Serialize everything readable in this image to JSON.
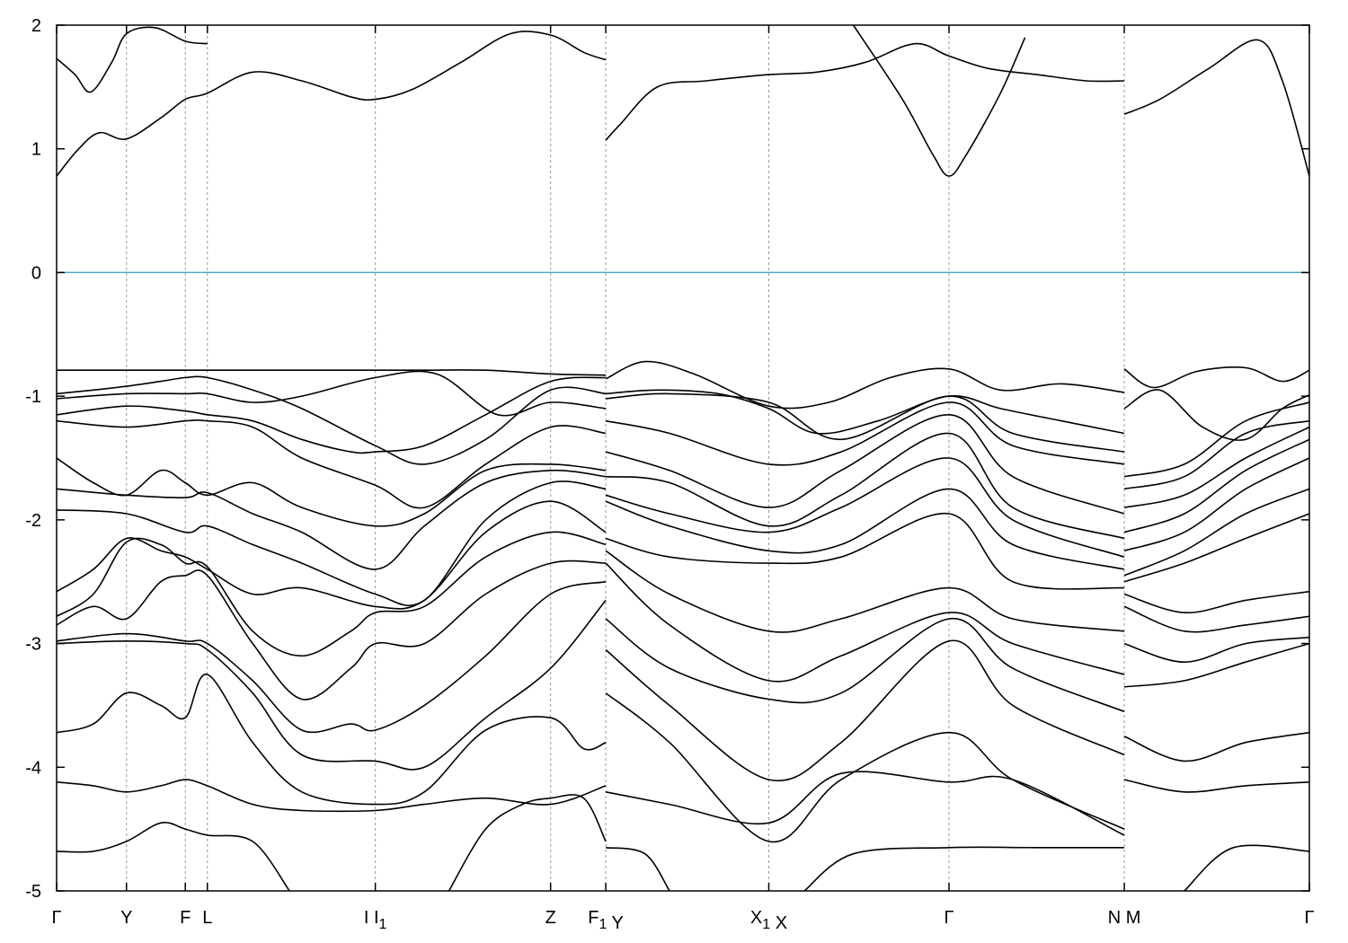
{
  "chart_data": {
    "type": "line",
    "title": "",
    "xlabel": "",
    "ylabel": "",
    "ylim": [
      -5,
      2
    ],
    "yticks": [
      2,
      1,
      0,
      -1,
      -2,
      -3,
      -4,
      -5
    ],
    "ytick_labels": [
      "2",
      "1",
      "0",
      "-1",
      "-2",
      "-3",
      "-4",
      "-5"
    ],
    "xlim": [
      0,
      10.22
    ],
    "kpoints": [
      {
        "x": 0.0,
        "label": "Γ",
        "sub": ""
      },
      {
        "x": 0.57,
        "label": "Y",
        "sub": ""
      },
      {
        "x": 1.05,
        "label": "F",
        "sub": ""
      },
      {
        "x": 1.23,
        "label": "L",
        "sub": ""
      },
      {
        "x": 2.6,
        "label": "I",
        "sub": ""
      },
      {
        "x": 2.6,
        "label": "I",
        "sub": "1"
      },
      {
        "x": 4.03,
        "label": "Z",
        "sub": ""
      },
      {
        "x": 4.48,
        "label": "F",
        "sub": "1"
      },
      {
        "x": 4.48,
        "label": "Y",
        "sub": ""
      },
      {
        "x": 5.81,
        "label": "X",
        "sub": "1"
      },
      {
        "x": 5.81,
        "label": "X",
        "sub": ""
      },
      {
        "x": 7.28,
        "label": "Γ",
        "sub": ""
      },
      {
        "x": 8.71,
        "label": "N",
        "sub": ""
      },
      {
        "x": 8.71,
        "label": "M",
        "sub": ""
      },
      {
        "x": 10.22,
        "label": "Γ",
        "sub": ""
      }
    ],
    "fermi_level": {
      "y": 0,
      "color": "#4fa8c8"
    },
    "grid": "vertical dashed at k-points",
    "bands": [
      {
        "x": [
          0,
          0.18,
          0.35,
          0.57,
          0.85,
          1.05,
          1.23,
          1.6,
          2.0,
          2.4,
          2.6,
          2.9,
          3.3,
          3.7,
          4.03,
          4.3,
          4.48
        ],
        "y": [
          0.78,
          1.0,
          1.13,
          1.08,
          1.25,
          1.4,
          1.45,
          1.62,
          1.55,
          1.42,
          1.4,
          1.48,
          1.7,
          1.93,
          1.92,
          1.78,
          1.72
        ]
      },
      {
        "x": [
          4.48,
          4.6,
          4.9,
          5.3,
          5.81,
          6.2,
          6.6,
          7.0,
          7.28,
          7.6,
          8.0,
          8.4,
          8.71
        ],
        "y": [
          1.07,
          1.2,
          1.5,
          1.55,
          1.6,
          1.62,
          1.7,
          1.85,
          1.75,
          1.65,
          1.6,
          1.55,
          1.55
        ]
      },
      {
        "x": [
          8.71,
          9.0,
          9.4,
          9.8,
          10.0,
          10.22
        ],
        "y": [
          1.28,
          1.4,
          1.65,
          1.88,
          1.55,
          0.78
        ]
      },
      {
        "x": [
          0,
          0.15,
          0.28,
          0.45,
          0.57,
          0.8,
          1.05,
          1.23
        ],
        "y": [
          1.73,
          1.6,
          1.46,
          1.7,
          1.93,
          1.98,
          1.87,
          1.85
        ]
      },
      {
        "x": [
          6.5,
          6.9,
          7.15,
          7.28,
          7.42,
          7.7,
          7.9
        ],
        "y": [
          2.0,
          1.4,
          0.95,
          0.78,
          0.95,
          1.45,
          1.9
        ]
      },
      {
        "x": [
          0,
          0.35,
          0.57,
          0.85,
          1.05,
          1.23,
          1.6,
          2.0,
          2.6,
          3.0,
          3.5,
          4.03,
          4.48
        ],
        "y": [
          -0.79,
          -0.79,
          -0.79,
          -0.79,
          -0.79,
          -0.79,
          -0.79,
          -0.79,
          -0.79,
          -0.79,
          -0.79,
          -0.82,
          -0.83
        ]
      },
      {
        "x": [
          4.48,
          4.8,
          5.2,
          5.81,
          6.3,
          6.8,
          7.28,
          7.7,
          8.2,
          8.71
        ],
        "y": [
          -0.86,
          -0.72,
          -0.82,
          -1.08,
          -1.05,
          -0.85,
          -0.78,
          -0.95,
          -0.9,
          -0.97
        ]
      },
      {
        "x": [
          8.71,
          8.95,
          9.3,
          9.7,
          10.0,
          10.22
        ],
        "y": [
          -0.78,
          -0.93,
          -0.8,
          -0.77,
          -0.88,
          -0.79
        ]
      },
      {
        "x": [
          0,
          0.3,
          0.57,
          0.85,
          1.05,
          1.23,
          1.6,
          2.0,
          2.6,
          3.0,
          3.5,
          4.03,
          4.48
        ],
        "y": [
          -0.98,
          -0.95,
          -0.92,
          -0.88,
          -0.85,
          -0.85,
          -0.95,
          -1.1,
          -1.4,
          -1.55,
          -1.35,
          -0.95,
          -0.98
        ]
      },
      {
        "x": [
          4.48,
          4.9,
          5.4,
          5.81,
          6.2,
          6.7,
          7.28,
          7.7,
          8.2,
          8.71
        ],
        "y": [
          -0.98,
          -0.95,
          -0.98,
          -1.1,
          -1.3,
          -1.2,
          -1.0,
          -1.1,
          -1.2,
          -1.3
        ]
      },
      {
        "x": [
          8.71,
          9.0,
          9.35,
          9.7,
          10.0,
          10.22
        ],
        "y": [
          -1.1,
          -0.95,
          -1.25,
          -1.35,
          -1.1,
          -0.99
        ]
      },
      {
        "x": [
          0,
          0.57,
          1.05,
          1.23,
          1.6,
          2.0,
          2.6,
          3.1,
          3.6,
          4.03,
          4.48
        ],
        "y": [
          -1.02,
          -0.98,
          -0.98,
          -0.98,
          -1.05,
          -1.0,
          -0.85,
          -0.82,
          -1.15,
          -1.05,
          -1.1
        ]
      },
      {
        "x": [
          4.48,
          5.0,
          5.81,
          6.4,
          7.28,
          7.8,
          8.71
        ],
        "y": [
          -1.02,
          -0.98,
          -1.05,
          -1.35,
          -1.0,
          -1.3,
          -1.45
        ]
      },
      {
        "x": [
          8.71,
          9.2,
          9.7,
          10.22
        ],
        "y": [
          -1.65,
          -1.55,
          -1.2,
          -1.05
        ]
      },
      {
        "x": [
          0,
          0.57,
          1.05,
          1.23,
          1.6,
          2.0,
          2.4,
          2.6,
          3.0,
          3.5,
          4.03,
          4.48
        ],
        "y": [
          -1.15,
          -1.08,
          -1.12,
          -1.15,
          -1.2,
          -1.35,
          -1.45,
          -1.45,
          -1.4,
          -1.15,
          -0.88,
          -0.85
        ]
      },
      {
        "x": [
          4.48,
          5.0,
          5.81,
          6.4,
          7.28,
          7.8,
          8.71
        ],
        "y": [
          -1.2,
          -1.3,
          -1.55,
          -1.45,
          -1.05,
          -1.4,
          -1.55
        ]
      },
      {
        "x": [
          8.71,
          9.2,
          9.7,
          10.22
        ],
        "y": [
          -1.75,
          -1.65,
          -1.3,
          -1.2
        ]
      },
      {
        "x": [
          0,
          0.57,
          1.05,
          1.23,
          1.6,
          2.0,
          2.6,
          3.0,
          3.5,
          4.03,
          4.48
        ],
        "y": [
          -1.2,
          -1.25,
          -1.2,
          -1.2,
          -1.25,
          -1.5,
          -1.72,
          -1.9,
          -1.55,
          -1.25,
          -1.3
        ]
      },
      {
        "x": [
          4.48,
          5.0,
          5.81,
          6.4,
          7.28,
          7.8,
          8.71
        ],
        "y": [
          -1.45,
          -1.6,
          -1.9,
          -1.6,
          -1.15,
          -1.65,
          -1.95
        ]
      },
      {
        "x": [
          8.71,
          9.2,
          9.7,
          10.22
        ],
        "y": [
          -1.9,
          -1.8,
          -1.5,
          -1.25
        ]
      },
      {
        "x": [
          0,
          0.3,
          0.57,
          0.85,
          1.05,
          1.23,
          1.6,
          2.0,
          2.6,
          3.0,
          3.5,
          4.03,
          4.48
        ],
        "y": [
          -1.5,
          -1.7,
          -1.8,
          -1.6,
          -1.7,
          -1.8,
          -1.7,
          -1.9,
          -2.05,
          -1.95,
          -1.6,
          -1.55,
          -1.6
        ]
      },
      {
        "x": [
          4.48,
          5.0,
          5.81,
          6.4,
          7.28,
          7.8,
          8.71
        ],
        "y": [
          -1.65,
          -1.7,
          -2.05,
          -1.8,
          -1.3,
          -1.9,
          -2.15
        ]
      },
      {
        "x": [
          8.71,
          9.2,
          9.7,
          10.22
        ],
        "y": [
          -2.1,
          -1.95,
          -1.6,
          -1.35
        ]
      },
      {
        "x": [
          0,
          0.57,
          1.05,
          1.23,
          1.6,
          2.0,
          2.6,
          3.0,
          3.5,
          4.03,
          4.48
        ],
        "y": [
          -1.75,
          -1.8,
          -1.82,
          -1.78,
          -1.95,
          -2.1,
          -2.4,
          -2.05,
          -1.7,
          -1.6,
          -1.65
        ]
      },
      {
        "x": [
          4.48,
          5.0,
          5.81,
          6.4,
          7.28,
          7.8,
          8.71
        ],
        "y": [
          -1.8,
          -1.95,
          -2.1,
          -1.9,
          -1.5,
          -2.0,
          -2.3
        ]
      },
      {
        "x": [
          8.71,
          9.2,
          9.7,
          10.22
        ],
        "y": [
          -2.25,
          -2.1,
          -1.75,
          -1.5
        ]
      },
      {
        "x": [
          0,
          0.57,
          1.05,
          1.23,
          1.6,
          2.0,
          2.6,
          3.0,
          3.5,
          4.03,
          4.48
        ],
        "y": [
          -1.92,
          -1.95,
          -2.1,
          -2.05,
          -2.2,
          -2.35,
          -2.6,
          -2.65,
          -2.0,
          -1.7,
          -1.75
        ]
      },
      {
        "x": [
          4.48,
          5.0,
          5.81,
          6.4,
          7.28,
          7.8,
          8.71
        ],
        "y": [
          -1.85,
          -2.05,
          -2.25,
          -2.2,
          -1.75,
          -2.2,
          -2.4
        ]
      },
      {
        "x": [
          8.71,
          9.2,
          9.7,
          10.22
        ],
        "y": [
          -2.45,
          -2.25,
          -1.95,
          -1.75
        ]
      },
      {
        "x": [
          0,
          0.3,
          0.57,
          0.85,
          1.05,
          1.23,
          1.6,
          2.0,
          2.6,
          3.0,
          3.5,
          4.03,
          4.48
        ],
        "y": [
          -2.58,
          -2.4,
          -2.15,
          -2.25,
          -2.3,
          -2.4,
          -2.6,
          -2.55,
          -2.7,
          -2.65,
          -2.1,
          -1.85,
          -2.1
        ]
      },
      {
        "x": [
          4.48,
          5.0,
          5.81,
          6.4,
          7.28,
          7.8,
          8.71
        ],
        "y": [
          -2.15,
          -2.3,
          -2.35,
          -2.3,
          -1.95,
          -2.5,
          -2.55
        ]
      },
      {
        "x": [
          8.71,
          9.2,
          9.7,
          10.22
        ],
        "y": [
          -2.5,
          -2.35,
          -2.15,
          -1.95
        ]
      },
      {
        "x": [
          0,
          0.3,
          0.57,
          0.85,
          1.05,
          1.23,
          1.6,
          2.0,
          2.4,
          2.6,
          3.0,
          3.5,
          4.03,
          4.48
        ],
        "y": [
          -2.78,
          -2.6,
          -2.18,
          -2.2,
          -2.35,
          -2.38,
          -2.9,
          -3.1,
          -2.9,
          -2.75,
          -2.7,
          -2.3,
          -2.1,
          -2.2
        ]
      },
      {
        "x": [
          4.48,
          5.0,
          5.81,
          6.4,
          7.28,
          7.8,
          8.71
        ],
        "y": [
          -2.25,
          -2.6,
          -2.9,
          -2.8,
          -2.55,
          -2.8,
          -2.9
        ]
      },
      {
        "x": [
          8.71,
          9.2,
          9.7,
          10.22
        ],
        "y": [
          -2.6,
          -2.75,
          -2.65,
          -2.58
        ]
      },
      {
        "x": [
          0,
          0.3,
          0.57,
          0.85,
          1.05,
          1.23,
          1.6,
          2.0,
          2.4,
          2.6,
          3.0,
          3.5,
          4.03,
          4.48
        ],
        "y": [
          -2.85,
          -2.7,
          -2.8,
          -2.5,
          -2.45,
          -2.45,
          -3.0,
          -3.45,
          -3.2,
          -3.0,
          -3.0,
          -2.6,
          -2.35,
          -2.35
        ]
      },
      {
        "x": [
          4.48,
          5.0,
          5.81,
          6.4,
          7.28,
          7.8,
          8.71
        ],
        "y": [
          -2.35,
          -2.85,
          -3.3,
          -3.1,
          -2.75,
          -3.0,
          -3.25
        ]
      },
      {
        "x": [
          8.71,
          9.2,
          9.7,
          10.22
        ],
        "y": [
          -2.7,
          -2.9,
          -2.85,
          -2.78
        ]
      },
      {
        "x": [
          0,
          0.57,
          1.05,
          1.23,
          1.6,
          2.0,
          2.4,
          2.6,
          3.0,
          3.5,
          4.03,
          4.48
        ],
        "y": [
          -2.98,
          -2.92,
          -2.98,
          -3.0,
          -3.3,
          -3.7,
          -3.65,
          -3.7,
          -3.5,
          -3.1,
          -2.6,
          -2.5
        ]
      },
      {
        "x": [
          4.48,
          5.0,
          5.81,
          6.4,
          7.28,
          7.8,
          8.71
        ],
        "y": [
          -2.8,
          -3.2,
          -3.45,
          -3.4,
          -2.8,
          -3.2,
          -3.55
        ]
      },
      {
        "x": [
          8.71,
          9.2,
          9.7,
          10.22
        ],
        "y": [
          -3.0,
          -3.15,
          -3.0,
          -2.95
        ]
      },
      {
        "x": [
          0,
          0.57,
          1.05,
          1.23,
          1.6,
          2.0,
          2.6,
          3.0,
          3.5,
          4.03,
          4.48
        ],
        "y": [
          -3.0,
          -2.98,
          -3.0,
          -3.05,
          -3.4,
          -3.9,
          -3.95,
          -4.0,
          -3.6,
          -3.2,
          -2.65
        ]
      },
      {
        "x": [
          4.48,
          5.0,
          5.81,
          6.4,
          7.28,
          7.8,
          8.71
        ],
        "y": [
          -3.05,
          -3.5,
          -4.1,
          -3.8,
          -2.98,
          -3.5,
          -3.9
        ]
      },
      {
        "x": [
          8.71,
          9.2,
          9.7,
          10.22
        ],
        "y": [
          -3.35,
          -3.3,
          -3.15,
          -3.0
        ]
      },
      {
        "x": [
          0,
          0.3,
          0.57,
          0.85,
          1.05,
          1.23,
          1.6,
          2.0,
          2.6,
          3.0,
          3.5,
          4.03,
          4.3,
          4.48
        ],
        "y": [
          -3.72,
          -3.65,
          -3.4,
          -3.5,
          -3.6,
          -3.25,
          -3.8,
          -4.2,
          -4.3,
          -4.2,
          -3.7,
          -3.6,
          -3.85,
          -3.8
        ]
      },
      {
        "x": [
          4.48,
          5.0,
          5.81,
          6.4,
          7.28,
          7.8,
          8.71
        ],
        "y": [
          -3.4,
          -3.8,
          -4.6,
          -4.1,
          -3.72,
          -4.1,
          -4.5
        ]
      },
      {
        "x": [
          8.71,
          9.2,
          9.7,
          10.22
        ],
        "y": [
          -3.75,
          -3.95,
          -3.8,
          -3.72
        ]
      },
      {
        "x": [
          0,
          0.3,
          0.57,
          0.85,
          1.05,
          1.23,
          1.6,
          2.0,
          2.6,
          3.0,
          3.5,
          4.03,
          4.48
        ],
        "y": [
          -4.12,
          -4.15,
          -4.2,
          -4.15,
          -4.1,
          -4.15,
          -4.3,
          -4.35,
          -4.35,
          -4.3,
          -4.25,
          -4.3,
          -4.15
        ]
      },
      {
        "x": [
          4.48,
          5.0,
          5.81,
          6.4,
          7.28,
          7.8,
          8.71
        ],
        "y": [
          -4.2,
          -4.3,
          -4.45,
          -4.05,
          -4.12,
          -4.1,
          -4.55
        ]
      },
      {
        "x": [
          8.71,
          9.2,
          9.7,
          10.22
        ],
        "y": [
          -4.1,
          -4.2,
          -4.15,
          -4.12
        ]
      },
      {
        "x": [
          0,
          0.3,
          0.57,
          0.85,
          1.05,
          1.23,
          1.6,
          1.9
        ],
        "y": [
          -4.68,
          -4.68,
          -4.6,
          -4.45,
          -4.5,
          -4.55,
          -4.6,
          -5.0
        ]
      },
      {
        "x": [
          3.2,
          3.5,
          3.8,
          4.03,
          4.3,
          4.48
        ],
        "y": [
          -5.0,
          -4.5,
          -4.3,
          -4.25,
          -4.25,
          -4.6
        ]
      },
      {
        "x": [
          4.48,
          4.8,
          5.0
        ],
        "y": [
          -4.65,
          -4.7,
          -5.0
        ]
      },
      {
        "x": [
          6.1,
          6.5,
          7.28,
          8.0,
          8.71
        ],
        "y": [
          -5.0,
          -4.7,
          -4.65,
          -4.65,
          -4.65
        ]
      },
      {
        "x": [
          9.2,
          9.6,
          10.22
        ],
        "y": [
          -5.0,
          -4.65,
          -4.68
        ]
      }
    ]
  }
}
